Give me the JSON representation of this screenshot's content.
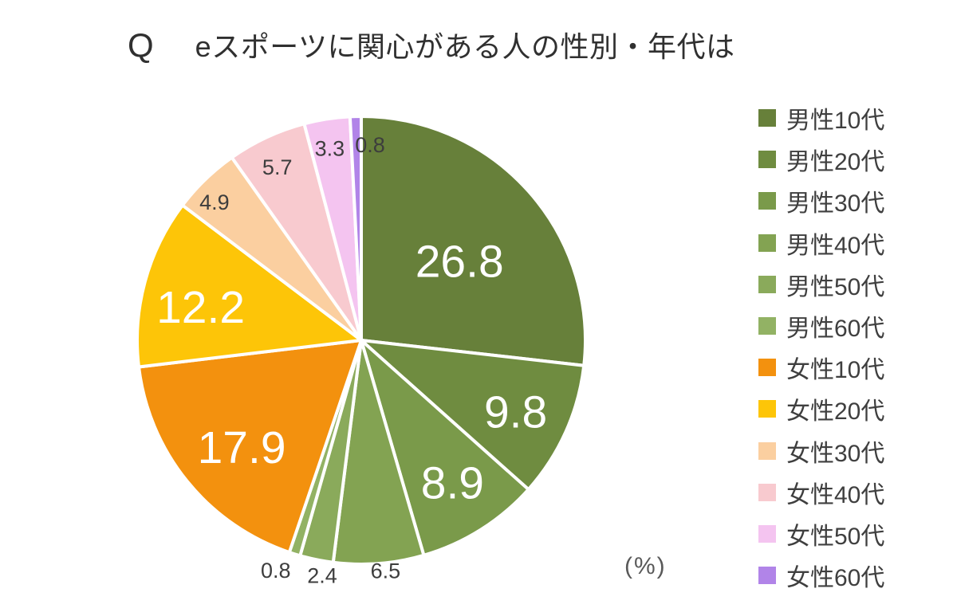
{
  "title": {
    "prefix": "Q",
    "text": "eスポーツに関心がある人の性別・年代は"
  },
  "unit_label": "(%)",
  "chart_data": {
    "type": "pie",
    "title": "eスポーツに関心がある人の性別・年代は",
    "unit": "%",
    "start_angle_deg": 0,
    "direction": "clockwise",
    "legend_position": "right",
    "grid": false,
    "categories": [
      "男性10代",
      "男性20代",
      "男性30代",
      "男性40代",
      "男性50代",
      "男性60代",
      "女性10代",
      "女性20代",
      "女性30代",
      "女性40代",
      "女性50代",
      "女性60代"
    ],
    "values": [
      26.8,
      9.8,
      8.9,
      6.5,
      2.4,
      0.8,
      17.9,
      12.2,
      4.9,
      5.7,
      3.3,
      0.8
    ],
    "colors": [
      "#67803a",
      "#6f8c40",
      "#7a9a4a",
      "#83a352",
      "#8aaa5b",
      "#92b264",
      "#f3910e",
      "#fdc508",
      "#fbcfa0",
      "#f8cacf",
      "#f4c4f0",
      "#b184e8"
    ],
    "value_label_colors": {
      "inside": "#ffffff",
      "outside": "#3d3d3d"
    },
    "slice_border_color": "#ffffff"
  }
}
